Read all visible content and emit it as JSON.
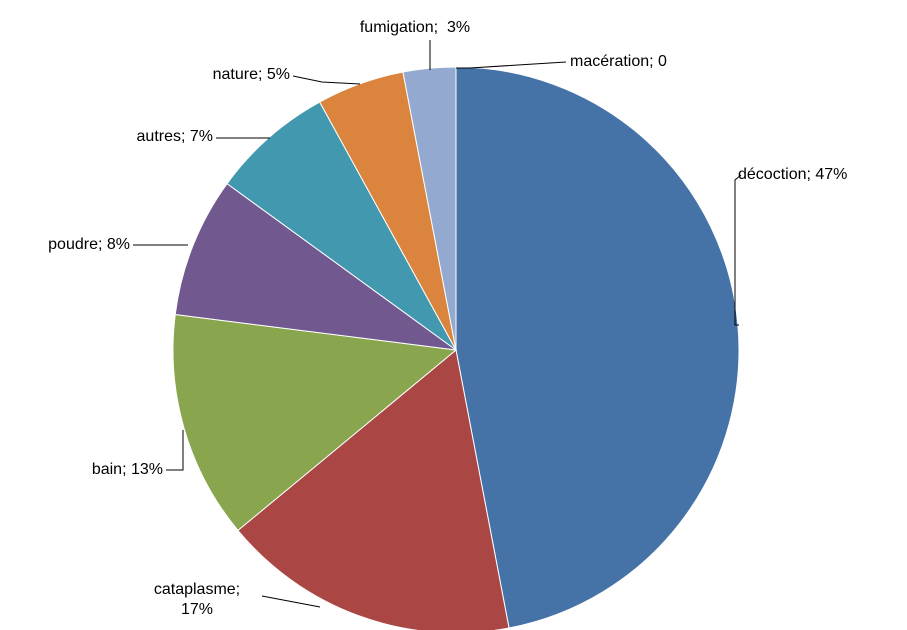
{
  "chart_data": {
    "type": "pie",
    "values": [
      47,
      17,
      13,
      8,
      7,
      5,
      3,
      0
    ],
    "value_labels": [
      "décoction; 47%",
      "cataplasme; 17%",
      "bain; 13%",
      "poudre; 8%",
      "autres; 7%",
      "nature; 5%",
      "fumigation;  3%",
      "macération; 0"
    ],
    "colors": [
      "#4572a7",
      "#aa4643",
      "#89a54e",
      "#71588f",
      "#4198af",
      "#db843d",
      "#93a9cf",
      "#a0a0a0"
    ]
  }
}
